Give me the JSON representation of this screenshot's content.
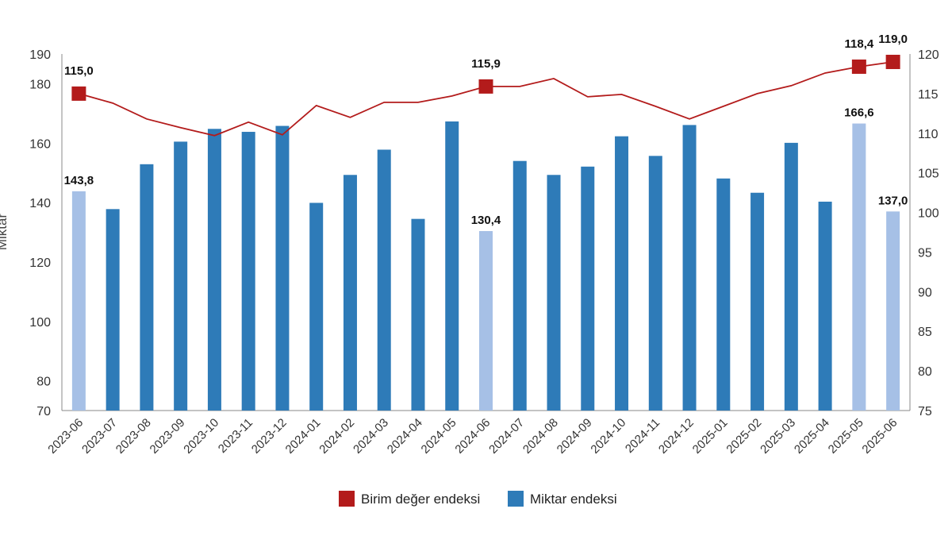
{
  "chart_data": {
    "type": "bar",
    "categories": [
      "2023-06",
      "2023-07",
      "2023-08",
      "2023-09",
      "2023-10",
      "2023-11",
      "2023-12",
      "2024-01",
      "2024-02",
      "2024-03",
      "2024-04",
      "2024-05",
      "2024-06",
      "2024-07",
      "2024-08",
      "2024-09",
      "2024-10",
      "2024-11",
      "2024-12",
      "2025-01",
      "2025-02",
      "2025-03",
      "2025-04",
      "2025-05",
      "2025-06"
    ],
    "ylabel": "Miktar",
    "ylim": [
      70,
      190
    ],
    "yticks": [
      70,
      80,
      100,
      120,
      140,
      160,
      180,
      190
    ],
    "y2lim": [
      75,
      120
    ],
    "y2ticks": [
      75,
      80,
      85,
      90,
      95,
      100,
      105,
      110,
      115,
      120
    ],
    "grid": false,
    "legend_position": "bottom",
    "series": [
      {
        "name": "Miktar endeksi",
        "type": "bar",
        "axis": "left",
        "color": "#2e7bb8",
        "highlight_color": "#a6c0e6",
        "highlight_indices": [
          0,
          12,
          23,
          24
        ],
        "values": [
          143.8,
          137.8,
          152.9,
          160.5,
          164.8,
          163.8,
          165.8,
          139.9,
          149.3,
          157.8,
          134.5,
          167.3,
          130.4,
          154.0,
          149.3,
          152.1,
          162.3,
          155.7,
          166.1,
          148.1,
          143.3,
          160.1,
          140.3,
          166.6,
          137.0
        ],
        "data_labels": {
          "0": "143,8",
          "12": "130,4",
          "23": "166,6",
          "24": "137,0"
        }
      },
      {
        "name": "Birim değer endeksi",
        "type": "line",
        "axis": "right",
        "color": "#b31b1b",
        "values": [
          115.0,
          113.8,
          111.8,
          110.7,
          109.7,
          111.4,
          109.8,
          113.5,
          112.0,
          113.9,
          113.9,
          114.7,
          115.9,
          115.9,
          116.9,
          114.6,
          114.9,
          113.4,
          111.8,
          113.4,
          115.0,
          116.0,
          117.6,
          118.4,
          119.0
        ],
        "marker_indices": [
          0,
          12,
          23,
          24
        ],
        "data_labels": {
          "0": "115,0",
          "12": "115,9",
          "23": "118,4",
          "24": "119,0"
        }
      }
    ]
  }
}
